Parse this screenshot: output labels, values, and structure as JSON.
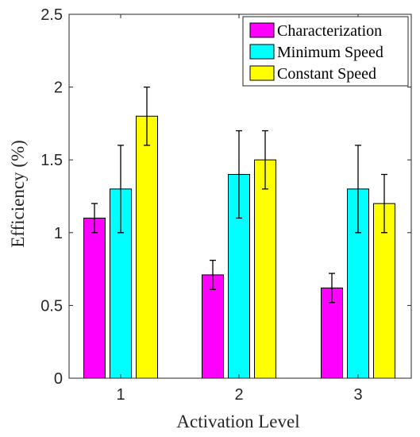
{
  "chart_data": {
    "type": "bar",
    "categories": [
      "1",
      "2",
      "3"
    ],
    "series": [
      {
        "name": "Characterization",
        "values": [
          1.1,
          0.71,
          0.62
        ],
        "errors": [
          0.1,
          0.1,
          0.1
        ],
        "color": "#ff00ff"
      },
      {
        "name": "Minimum Speed",
        "values": [
          1.3,
          1.4,
          1.3
        ],
        "errors": [
          0.3,
          0.3,
          0.3
        ],
        "color": "#00ffff"
      },
      {
        "name": "Constant Speed",
        "values": [
          1.8,
          1.5,
          1.2
        ],
        "errors": [
          0.2,
          0.2,
          0.2
        ],
        "color": "#ffff00"
      }
    ],
    "title": "",
    "xlabel": "Activation Level",
    "ylabel": "Efficiency (%)",
    "ylim": [
      0,
      2.5
    ],
    "yticks": [
      "0",
      "0.5",
      "1",
      "1.5",
      "2",
      "2.5"
    ],
    "grid": false,
    "legend_position": "top-right"
  }
}
